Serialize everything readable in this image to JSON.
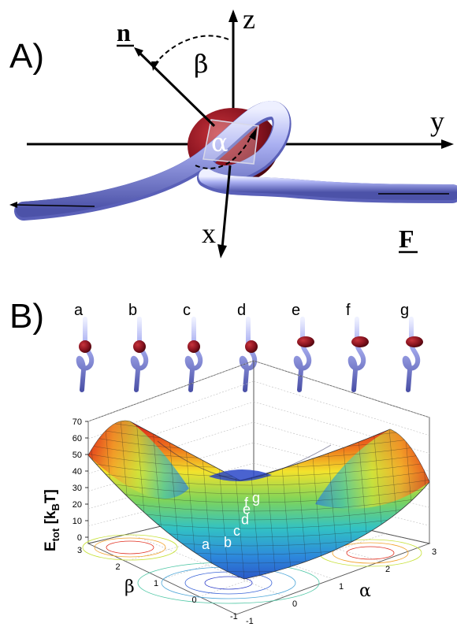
{
  "panel_a": {
    "label": "A)",
    "axes": {
      "z": "z",
      "y": "y",
      "x": "x"
    },
    "normal": "n",
    "angle_beta": "β",
    "angle_alpha": "α",
    "force": "F"
  },
  "panel_b": {
    "label": "B)",
    "conformations": [
      "a",
      "b",
      "c",
      "d",
      "e",
      "f",
      "g"
    ],
    "ylabel_main": "E",
    "ylabel_sub": "tot",
    "ylabel_units": " [k",
    "ylabel_units_sub": "B",
    "ylabel_units_end": "T]",
    "xlabel_beta": "β",
    "xlabel_alpha": "α",
    "z_ticks": [
      "0",
      "10",
      "20",
      "30",
      "40",
      "50",
      "60",
      "70"
    ],
    "beta_ticks": [
      "3",
      "2",
      "1",
      "0",
      "-1"
    ],
    "alpha_ticks": [
      "-1",
      "0",
      "1",
      "2",
      "3"
    ],
    "path_letters": [
      "a",
      "b",
      "c",
      "d",
      "e",
      "f",
      "g"
    ]
  },
  "chart_data": {
    "type": "surface",
    "zlabel": "E_tot [k_B T]",
    "xlabel": "α",
    "ylabel": "β",
    "zlim": [
      0,
      70
    ],
    "xlim": [
      -1,
      3
    ],
    "ylim": [
      -1,
      3
    ],
    "z_ticks": [
      0,
      10,
      20,
      30,
      40,
      50,
      60,
      70
    ],
    "path_points": [
      {
        "name": "a",
        "E": 12
      },
      {
        "name": "b",
        "E": 13
      },
      {
        "name": "c",
        "E": 20
      },
      {
        "name": "d",
        "E": 27
      },
      {
        "name": "e",
        "E": 33
      },
      {
        "name": "f",
        "E": 37
      },
      {
        "name": "g",
        "E": 40
      }
    ],
    "grid": true,
    "colormap": "jet"
  }
}
